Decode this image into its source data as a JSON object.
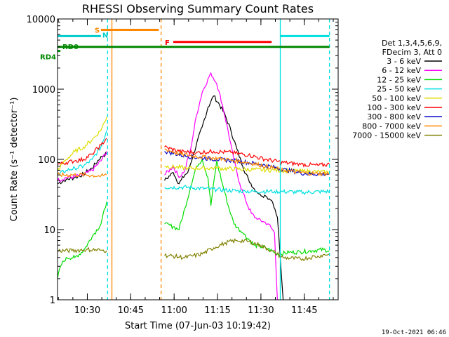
{
  "chart_data": {
    "type": "line",
    "title": "RHESSI Observing Summary Count Rates",
    "xlabel": "Start Time (07-Jun-03 10:19:42)",
    "ylabel": "Count Rate (s⁻¹ detector⁻¹)",
    "yscale": "log",
    "ylim": [
      1,
      10000
    ],
    "xlim_minutes": [
      0,
      97
    ],
    "xticks": [
      {
        "label": "10:30",
        "t": 10.3
      },
      {
        "label": "10:45",
        "t": 25.3
      },
      {
        "label": "11:00",
        "t": 40.3
      },
      {
        "label": "11:15",
        "t": 55.3
      },
      {
        "label": "11:30",
        "t": 70.3
      },
      {
        "label": "11:45",
        "t": 85.3
      }
    ],
    "yticks": [
      {
        "label": "1",
        "v": 1
      },
      {
        "label": "10",
        "v": 10
      },
      {
        "label": "100",
        "v": 100
      },
      {
        "label": "1000",
        "v": 1000
      },
      {
        "label": "10000",
        "v": 10000
      }
    ],
    "legend_header": [
      "Det 1,3,4,5,6,9,",
      "FDecim 3, Att 0"
    ],
    "timestamp": "19-Oct-2021 06:46",
    "flags": [
      {
        "label": "S",
        "color": "#ff8800",
        "t0": 15,
        "t1": 35,
        "v": 7000
      },
      {
        "label": "N",
        "color": "#00cccc",
        "t0": 0,
        "t1": 15,
        "v": 5700
      },
      {
        "label": "F",
        "color": "#ff0000",
        "t0": 40,
        "t1": 74,
        "v": 4700
      },
      {
        "label": "",
        "color": "#00e0e0",
        "t0": 77,
        "t1": 94,
        "v": 5700
      },
      {
        "label": "RD0",
        "color": "#008800",
        "t0": 0,
        "t1": 94,
        "v": 4000
      },
      {
        "label": "RD4",
        "color": "#008800",
        "t0": 0,
        "t1": 1,
        "v": 3500
      }
    ],
    "vlines": [
      {
        "t": 17.3,
        "color": "#00e0e0",
        "style": "dash"
      },
      {
        "t": 18.8,
        "color": "#ff8800",
        "style": "solid"
      },
      {
        "t": 35.8,
        "color": "#ff8800",
        "style": "dash"
      },
      {
        "t": 77.0,
        "color": "#00e0e0",
        "style": "solid"
      },
      {
        "t": 94.0,
        "color": "#00e0e0",
        "style": "dash"
      }
    ],
    "series": [
      {
        "name": "3 - 6 keV",
        "color": "#000000",
        "points": [
          [
            0,
            45
          ],
          [
            3,
            52
          ],
          [
            6,
            55
          ],
          [
            9,
            62
          ],
          [
            12,
            75
          ],
          [
            15,
            110
          ],
          [
            17,
            120
          ],
          [
            null,
            null
          ],
          [
            37,
            50
          ],
          [
            40,
            65
          ],
          [
            42,
            45
          ],
          [
            44,
            60
          ],
          [
            45,
            65
          ],
          [
            47,
            120
          ],
          [
            50,
            290
          ],
          [
            52,
            550
          ],
          [
            54,
            800
          ],
          [
            56,
            600
          ],
          [
            58,
            420
          ],
          [
            60,
            250
          ],
          [
            62,
            140
          ],
          [
            64,
            80
          ],
          [
            66,
            52
          ],
          [
            68,
            38
          ],
          [
            70,
            32
          ],
          [
            72,
            30
          ],
          [
            74,
            26
          ],
          [
            76,
            15
          ],
          [
            78,
            1
          ]
        ]
      },
      {
        "name": "6 - 12 keV",
        "color": "#ff00ff",
        "points": [
          [
            0,
            50
          ],
          [
            3,
            55
          ],
          [
            6,
            57
          ],
          [
            9,
            60
          ],
          [
            12,
            70
          ],
          [
            15,
            95
          ],
          [
            17,
            130
          ],
          [
            null,
            null
          ],
          [
            37,
            60
          ],
          [
            40,
            80
          ],
          [
            42,
            55
          ],
          [
            44,
            70
          ],
          [
            46,
            140
          ],
          [
            48,
            420
          ],
          [
            50,
            900
          ],
          [
            52,
            1400
          ],
          [
            53,
            1700
          ],
          [
            55,
            1200
          ],
          [
            57,
            600
          ],
          [
            59,
            250
          ],
          [
            61,
            95
          ],
          [
            63,
            45
          ],
          [
            65,
            26
          ],
          [
            67,
            17
          ],
          [
            69,
            14
          ],
          [
            71,
            13
          ],
          [
            73,
            12
          ],
          [
            75,
            9
          ],
          [
            76,
            1
          ]
        ]
      },
      {
        "name": "12 - 25 keV",
        "color": "#00dd00",
        "points": [
          [
            0,
            2
          ],
          [
            1,
            3
          ],
          [
            3,
            4
          ],
          [
            6,
            4
          ],
          [
            9,
            5
          ],
          [
            12,
            8
          ],
          [
            15,
            12
          ],
          [
            17,
            25
          ],
          [
            null,
            null
          ],
          [
            37,
            12
          ],
          [
            40,
            11
          ],
          [
            42,
            10
          ],
          [
            44,
            20
          ],
          [
            46,
            40
          ],
          [
            48,
            80
          ],
          [
            50,
            100
          ],
          [
            52,
            55
          ],
          [
            53,
            22
          ],
          [
            55,
            95
          ],
          [
            57,
            45
          ],
          [
            59,
            22
          ],
          [
            61,
            12
          ],
          [
            64,
            9
          ],
          [
            68,
            6
          ],
          [
            72,
            5.5
          ],
          [
            76,
            4.5
          ],
          [
            80,
            4.7
          ],
          [
            84,
            4.8
          ],
          [
            88,
            5
          ],
          [
            92,
            5.2
          ],
          [
            94,
            5
          ]
        ]
      },
      {
        "name": "25 - 50 keV",
        "color": "#00e0e0",
        "points": [
          [
            0,
            60
          ],
          [
            3,
            70
          ],
          [
            6,
            75
          ],
          [
            9,
            80
          ],
          [
            12,
            100
          ],
          [
            15,
            150
          ],
          [
            17,
            260
          ],
          [
            null,
            null
          ],
          [
            37,
            40
          ],
          [
            45,
            40
          ],
          [
            55,
            37
          ],
          [
            65,
            35
          ],
          [
            75,
            35
          ],
          [
            85,
            34
          ],
          [
            94,
            35
          ]
        ]
      },
      {
        "name": "50 - 100 keV",
        "color": "#dddd00",
        "points": [
          [
            0,
            70
          ],
          [
            3,
            100
          ],
          [
            6,
            130
          ],
          [
            9,
            150
          ],
          [
            12,
            190
          ],
          [
            15,
            260
          ],
          [
            17,
            400
          ],
          [
            null,
            null
          ],
          [
            37,
            80
          ],
          [
            45,
            75
          ],
          [
            55,
            75
          ],
          [
            65,
            72
          ],
          [
            75,
            70
          ],
          [
            85,
            68
          ],
          [
            94,
            65
          ]
        ]
      },
      {
        "name": "100 - 300 keV",
        "color": "#ff0000",
        "points": [
          [
            0,
            85
          ],
          [
            3,
            90
          ],
          [
            6,
            95
          ],
          [
            9,
            100
          ],
          [
            12,
            120
          ],
          [
            15,
            160
          ],
          [
            17,
            200
          ],
          [
            null,
            null
          ],
          [
            37,
            150
          ],
          [
            42,
            130
          ],
          [
            48,
            125
          ],
          [
            54,
            130
          ],
          [
            60,
            125
          ],
          [
            66,
            115
          ],
          [
            72,
            100
          ],
          [
            78,
            90
          ],
          [
            84,
            85
          ],
          [
            90,
            82
          ],
          [
            94,
            85
          ]
        ]
      },
      {
        "name": "300 - 800 keV",
        "color": "#0000cc",
        "points": [
          [
            null,
            null
          ],
          [
            37,
            130
          ],
          [
            45,
            110
          ],
          [
            55,
            100
          ],
          [
            62,
            95
          ],
          [
            70,
            85
          ],
          [
            78,
            72
          ],
          [
            86,
            62
          ],
          [
            94,
            62
          ]
        ]
      },
      {
        "name": "800 - 7000 keV",
        "color": "#ff8800",
        "points": [
          [
            0,
            60
          ],
          [
            5,
            60
          ],
          [
            10,
            60
          ],
          [
            15,
            58
          ],
          [
            17,
            60
          ],
          [
            null,
            null
          ],
          [
            37,
            140
          ],
          [
            42,
            120
          ],
          [
            48,
            110
          ],
          [
            54,
            105
          ],
          [
            60,
            98
          ],
          [
            66,
            90
          ],
          [
            72,
            80
          ],
          [
            78,
            70
          ],
          [
            84,
            65
          ],
          [
            90,
            62
          ],
          [
            94,
            63
          ]
        ]
      },
      {
        "name": "7000 - 15000 keV",
        "color": "#808000",
        "points": [
          [
            0,
            5
          ],
          [
            5,
            5
          ],
          [
            10,
            5.2
          ],
          [
            15,
            5.1
          ],
          [
            17,
            5
          ],
          [
            null,
            null
          ],
          [
            37,
            4.3
          ],
          [
            44,
            4
          ],
          [
            50,
            4.5
          ],
          [
            54,
            5.5
          ],
          [
            58,
            6.5
          ],
          [
            62,
            7
          ],
          [
            66,
            6.8
          ],
          [
            70,
            6
          ],
          [
            74,
            5
          ],
          [
            78,
            4
          ],
          [
            84,
            3.8
          ],
          [
            90,
            4.2
          ],
          [
            94,
            4.5
          ]
        ]
      }
    ]
  }
}
